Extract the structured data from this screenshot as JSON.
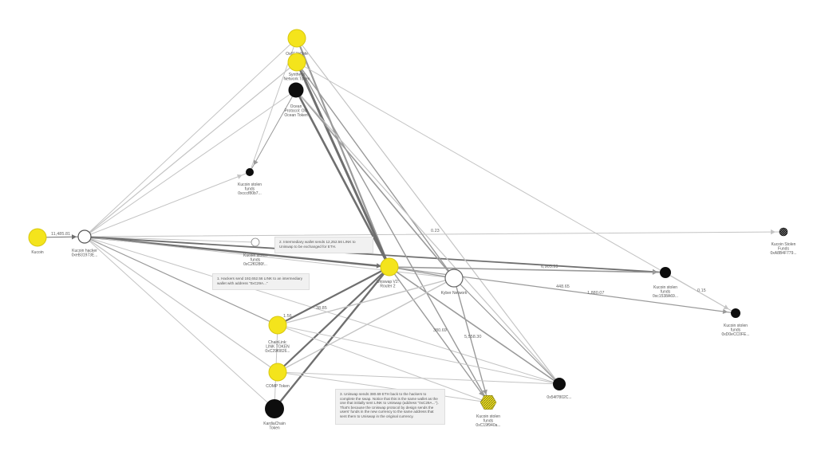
{
  "colors": {
    "yellow": "#f4e41c",
    "black": "#0d0d0d",
    "white_node": "#ffffff",
    "edge_light": "#c4c4c4",
    "edge_mid": "#9a9a9a",
    "edge_dark": "#6f6f6f",
    "note_bg": "#f1f1f1"
  },
  "nodes": {
    "kucoin": {
      "label": [
        "Kucoin"
      ]
    },
    "kucoin_hacker": {
      "label": [
        "Kucoin hacker",
        "0xeB31973E..."
      ]
    },
    "top_yellow": {
      "label": [
        "Ox6E1b6bfe"
      ]
    },
    "synthetix": {
      "label": [
        "Synthetix",
        "Network Token"
      ]
    },
    "ocean": {
      "label": [
        "Ocean",
        "Protocol: Old",
        "Ocean Token"
      ]
    },
    "stolen_a": {
      "label": [
        "Kucoin stolen",
        "funds",
        "0xcccf80b7..."
      ]
    },
    "stolen_b": {
      "label": [
        "Kucoin stolen",
        "funds",
        "0xC2f0280f..."
      ]
    },
    "uniswap": {
      "label": [
        "Uniswap V2:",
        "Router 2"
      ]
    },
    "kyber": {
      "label": [
        "Kyber Network"
      ]
    },
    "chainlink": {
      "label": [
        "ChainLink:",
        "LINK TOKEN",
        "0xC29f0826..."
      ]
    },
    "comp": {
      "label": [
        "COMP Token"
      ]
    },
    "kardiachain": {
      "label": [
        "KardiaChain",
        "Token"
      ]
    },
    "far_right": {
      "label": [
        "Kucoin Stolen",
        "Funds",
        "0xA8B4F779..."
      ]
    },
    "stolen_c": {
      "label": [
        "Kucoin stolen",
        "funds",
        "0xc1538A69..."
      ]
    },
    "stolen_d": {
      "label": [
        "Kucoin stolen",
        "funds",
        "0xD0eCC0FE..."
      ]
    },
    "wallet_bottom": {
      "label": [
        "0x54f7802C..."
      ]
    },
    "stolen_e": {
      "label": [
        "Kucoin stolen",
        "funds",
        "0xC19f940a..."
      ]
    }
  },
  "edge_labels": {
    "hack": "11,485.81",
    "e023": "0.23",
    "e6905": "6,905.99",
    "e44865": "448.65",
    "e1880": "1,880.07",
    "e015": "0.15",
    "e380": "380.69",
    "e5558": "5,558.30",
    "e156": "1.56",
    "e38": "38.85"
  },
  "notes": {
    "note1": "1. Hackers send 192,652.56 LINK to an intermediary wallet with address \"0xC29A...\"",
    "note2": "2. Intermediary wallet sends 12,252.56 LINK to Uniswap to be exchanged for ETH.",
    "note3": "3. Uniswap sends 380.69 ETH back to the hackers to complete the swap. Notice that this is the same wallet as the one that initially sent LINK to Uniswap (address \"0xC29A...\"). That's because the Uniswap protocol by design sends the users' funds in the new currency to the same address that sent them to Uniswap in the original currency."
  }
}
